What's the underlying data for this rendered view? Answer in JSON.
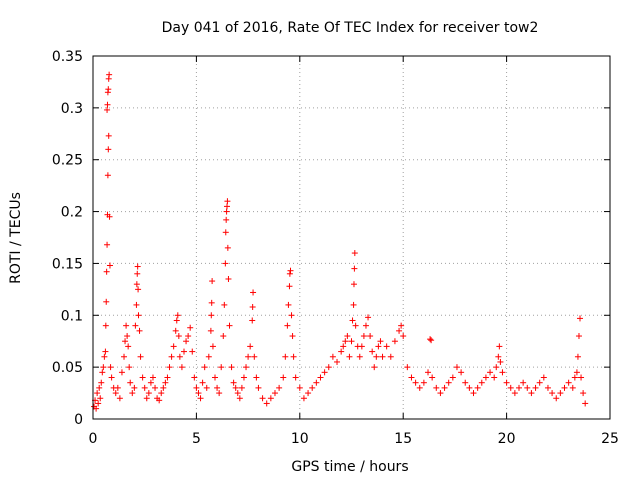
{
  "chart_data": {
    "type": "scatter",
    "title": "Day 041 of 2016, Rate Of TEC Index for receiver tow2",
    "xlabel": "GPS time / hours",
    "ylabel": "ROTI / TECUs",
    "xlim": [
      0,
      25
    ],
    "ylim": [
      0,
      0.35
    ],
    "xticks": [
      0,
      5,
      10,
      15,
      20,
      25
    ],
    "xtick_labels": [
      "0",
      "5",
      "10",
      "15",
      "20",
      "25"
    ],
    "yticks": [
      0,
      0.05,
      0.1,
      0.15,
      0.2,
      0.25,
      0.3,
      0.35
    ],
    "ytick_labels": [
      "0",
      "0.05",
      "0.1",
      "0.15",
      "0.2",
      "0.25",
      "0.3",
      "0.35"
    ],
    "grid": true,
    "marker": "+",
    "color": "#ff0000",
    "series": [
      {
        "name": "ROTI",
        "points": [
          [
            0.05,
            0.012
          ],
          [
            0.1,
            0.018
          ],
          [
            0.15,
            0.01
          ],
          [
            0.2,
            0.025
          ],
          [
            0.25,
            0.015
          ],
          [
            0.3,
            0.03
          ],
          [
            0.35,
            0.02
          ],
          [
            0.4,
            0.035
          ],
          [
            0.45,
            0.045
          ],
          [
            0.5,
            0.05
          ],
          [
            0.55,
            0.06
          ],
          [
            0.6,
            0.065
          ],
          [
            0.62,
            0.09
          ],
          [
            0.64,
            0.113
          ],
          [
            0.66,
            0.142
          ],
          [
            0.68,
            0.168
          ],
          [
            0.7,
            0.197
          ],
          [
            0.72,
            0.235
          ],
          [
            0.74,
            0.26
          ],
          [
            0.76,
            0.273
          ],
          [
            0.68,
            0.298
          ],
          [
            0.7,
            0.303
          ],
          [
            0.72,
            0.315
          ],
          [
            0.74,
            0.318
          ],
          [
            0.76,
            0.328
          ],
          [
            0.78,
            0.332
          ],
          [
            0.8,
            0.195
          ],
          [
            0.82,
            0.148
          ],
          [
            0.85,
            0.05
          ],
          [
            0.9,
            0.04
          ],
          [
            1.0,
            0.03
          ],
          [
            1.1,
            0.025
          ],
          [
            1.2,
            0.03
          ],
          [
            1.3,
            0.02
          ],
          [
            1.4,
            0.045
          ],
          [
            1.5,
            0.06
          ],
          [
            1.55,
            0.075
          ],
          [
            1.6,
            0.09
          ],
          [
            1.65,
            0.08
          ],
          [
            1.7,
            0.07
          ],
          [
            1.75,
            0.05
          ],
          [
            1.8,
            0.035
          ],
          [
            1.9,
            0.025
          ],
          [
            2.0,
            0.03
          ],
          [
            2.05,
            0.09
          ],
          [
            2.1,
            0.11
          ],
          [
            2.12,
            0.13
          ],
          [
            2.14,
            0.14
          ],
          [
            2.16,
            0.147
          ],
          [
            2.18,
            0.125
          ],
          [
            2.2,
            0.1
          ],
          [
            2.25,
            0.085
          ],
          [
            2.3,
            0.06
          ],
          [
            2.4,
            0.04
          ],
          [
            2.5,
            0.03
          ],
          [
            2.6,
            0.02
          ],
          [
            2.7,
            0.025
          ],
          [
            2.8,
            0.035
          ],
          [
            2.9,
            0.04
          ],
          [
            3.0,
            0.03
          ],
          [
            3.1,
            0.02
          ],
          [
            3.2,
            0.018
          ],
          [
            3.3,
            0.025
          ],
          [
            3.4,
            0.03
          ],
          [
            3.5,
            0.035
          ],
          [
            3.6,
            0.04
          ],
          [
            3.7,
            0.05
          ],
          [
            3.8,
            0.06
          ],
          [
            3.9,
            0.07
          ],
          [
            4.0,
            0.085
          ],
          [
            4.05,
            0.095
          ],
          [
            4.1,
            0.1
          ],
          [
            4.15,
            0.08
          ],
          [
            4.2,
            0.06
          ],
          [
            4.3,
            0.05
          ],
          [
            4.4,
            0.065
          ],
          [
            4.5,
            0.075
          ],
          [
            4.6,
            0.08
          ],
          [
            4.7,
            0.088
          ],
          [
            4.8,
            0.065
          ],
          [
            4.9,
            0.04
          ],
          [
            5.0,
            0.03
          ],
          [
            5.1,
            0.025
          ],
          [
            5.2,
            0.02
          ],
          [
            5.3,
            0.035
          ],
          [
            5.4,
            0.05
          ],
          [
            5.5,
            0.03
          ],
          [
            5.6,
            0.06
          ],
          [
            5.7,
            0.085
          ],
          [
            5.72,
            0.1
          ],
          [
            5.74,
            0.112
          ],
          [
            5.76,
            0.133
          ],
          [
            5.8,
            0.07
          ],
          [
            5.9,
            0.04
          ],
          [
            6.0,
            0.03
          ],
          [
            6.1,
            0.025
          ],
          [
            6.2,
            0.05
          ],
          [
            6.3,
            0.08
          ],
          [
            6.35,
            0.11
          ],
          [
            6.4,
            0.15
          ],
          [
            6.42,
            0.18
          ],
          [
            6.44,
            0.192
          ],
          [
            6.46,
            0.2
          ],
          [
            6.48,
            0.205
          ],
          [
            6.5,
            0.21
          ],
          [
            6.52,
            0.165
          ],
          [
            6.55,
            0.135
          ],
          [
            6.6,
            0.09
          ],
          [
            6.7,
            0.05
          ],
          [
            6.8,
            0.035
          ],
          [
            6.9,
            0.03
          ],
          [
            7.0,
            0.025
          ],
          [
            7.1,
            0.02
          ],
          [
            7.2,
            0.03
          ],
          [
            7.3,
            0.04
          ],
          [
            7.4,
            0.05
          ],
          [
            7.5,
            0.06
          ],
          [
            7.6,
            0.07
          ],
          [
            7.7,
            0.095
          ],
          [
            7.72,
            0.108
          ],
          [
            7.74,
            0.122
          ],
          [
            7.8,
            0.06
          ],
          [
            7.9,
            0.04
          ],
          [
            8.0,
            0.03
          ],
          [
            8.2,
            0.02
          ],
          [
            8.4,
            0.015
          ],
          [
            8.6,
            0.02
          ],
          [
            8.8,
            0.025
          ],
          [
            9.0,
            0.03
          ],
          [
            9.2,
            0.04
          ],
          [
            9.3,
            0.06
          ],
          [
            9.4,
            0.09
          ],
          [
            9.45,
            0.11
          ],
          [
            9.5,
            0.128
          ],
          [
            9.52,
            0.14
          ],
          [
            9.55,
            0.143
          ],
          [
            9.6,
            0.1
          ],
          [
            9.65,
            0.08
          ],
          [
            9.7,
            0.06
          ],
          [
            9.8,
            0.04
          ],
          [
            10.0,
            0.03
          ],
          [
            10.2,
            0.02
          ],
          [
            10.4,
            0.025
          ],
          [
            10.6,
            0.03
          ],
          [
            10.8,
            0.035
          ],
          [
            11.0,
            0.04
          ],
          [
            11.2,
            0.045
          ],
          [
            11.4,
            0.05
          ],
          [
            11.6,
            0.06
          ],
          [
            11.8,
            0.055
          ],
          [
            12.0,
            0.065
          ],
          [
            12.1,
            0.07
          ],
          [
            12.2,
            0.075
          ],
          [
            12.3,
            0.08
          ],
          [
            12.4,
            0.06
          ],
          [
            12.5,
            0.075
          ],
          [
            12.55,
            0.095
          ],
          [
            12.6,
            0.11
          ],
          [
            12.62,
            0.13
          ],
          [
            12.64,
            0.145
          ],
          [
            12.66,
            0.16
          ],
          [
            12.7,
            0.09
          ],
          [
            12.8,
            0.07
          ],
          [
            12.9,
            0.06
          ],
          [
            13.0,
            0.07
          ],
          [
            13.1,
            0.08
          ],
          [
            13.2,
            0.09
          ],
          [
            13.3,
            0.098
          ],
          [
            13.4,
            0.08
          ],
          [
            13.5,
            0.065
          ],
          [
            13.6,
            0.05
          ],
          [
            13.7,
            0.06
          ],
          [
            13.8,
            0.07
          ],
          [
            13.9,
            0.075
          ],
          [
            14.0,
            0.06
          ],
          [
            14.2,
            0.07
          ],
          [
            14.4,
            0.06
          ],
          [
            14.6,
            0.075
          ],
          [
            14.8,
            0.085
          ],
          [
            14.9,
            0.09
          ],
          [
            15.0,
            0.08
          ],
          [
            15.2,
            0.05
          ],
          [
            15.4,
            0.04
          ],
          [
            15.6,
            0.035
          ],
          [
            15.8,
            0.03
          ],
          [
            16.0,
            0.035
          ],
          [
            16.2,
            0.045
          ],
          [
            16.3,
            0.077
          ],
          [
            16.35,
            0.076
          ],
          [
            16.4,
            0.04
          ],
          [
            16.6,
            0.03
          ],
          [
            16.8,
            0.025
          ],
          [
            17.0,
            0.03
          ],
          [
            17.2,
            0.035
          ],
          [
            17.4,
            0.04
          ],
          [
            17.6,
            0.05
          ],
          [
            17.8,
            0.045
          ],
          [
            18.0,
            0.035
          ],
          [
            18.2,
            0.03
          ],
          [
            18.4,
            0.025
          ],
          [
            18.6,
            0.03
          ],
          [
            18.8,
            0.035
          ],
          [
            19.0,
            0.04
          ],
          [
            19.2,
            0.045
          ],
          [
            19.4,
            0.04
          ],
          [
            19.5,
            0.05
          ],
          [
            19.6,
            0.06
          ],
          [
            19.65,
            0.07
          ],
          [
            19.7,
            0.055
          ],
          [
            19.8,
            0.045
          ],
          [
            20.0,
            0.035
          ],
          [
            20.2,
            0.03
          ],
          [
            20.4,
            0.025
          ],
          [
            20.6,
            0.03
          ],
          [
            20.8,
            0.035
          ],
          [
            21.0,
            0.03
          ],
          [
            21.2,
            0.025
          ],
          [
            21.4,
            0.03
          ],
          [
            21.6,
            0.035
          ],
          [
            21.8,
            0.04
          ],
          [
            22.0,
            0.03
          ],
          [
            22.2,
            0.025
          ],
          [
            22.4,
            0.02
          ],
          [
            22.6,
            0.025
          ],
          [
            22.8,
            0.03
          ],
          [
            23.0,
            0.035
          ],
          [
            23.2,
            0.03
          ],
          [
            23.3,
            0.04
          ],
          [
            23.4,
            0.045
          ],
          [
            23.45,
            0.06
          ],
          [
            23.5,
            0.08
          ],
          [
            23.55,
            0.097
          ],
          [
            23.6,
            0.04
          ],
          [
            23.7,
            0.025
          ],
          [
            23.8,
            0.015
          ]
        ]
      }
    ]
  }
}
